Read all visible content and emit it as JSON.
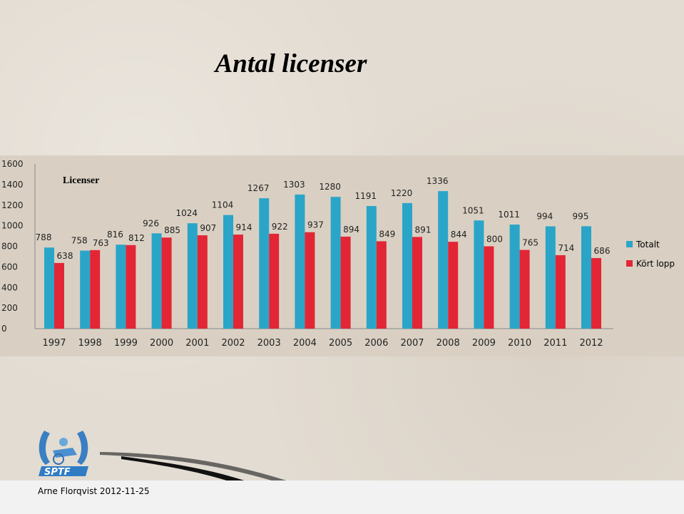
{
  "slide": {
    "title": "Antal licenser",
    "footer": "Arne Florqvist 2012-11-25",
    "logo_text": "SPTF"
  },
  "colors": {
    "series_totalt": "#2aa5c8",
    "series_kort_lopp": "#e32636",
    "chart_background": "#d9d0c3",
    "page_background": "#e3dcd2"
  },
  "chart_data": {
    "type": "bar",
    "title": "Licenser",
    "xlabel": "",
    "ylabel": "",
    "ylim": [
      0,
      1600
    ],
    "yticks": [
      0,
      200,
      400,
      600,
      800,
      1000,
      1200,
      1400,
      1600
    ],
    "grid": false,
    "legend_position": "right",
    "categories": [
      "1997",
      "1998",
      "1999",
      "2000",
      "2001",
      "2002",
      "2003",
      "2004",
      "2005",
      "2006",
      "2007",
      "2008",
      "2009",
      "2010",
      "2011",
      "2012"
    ],
    "series": [
      {
        "name": "Totalt",
        "values": [
          788,
          758,
          816,
          926,
          1024,
          1104,
          1267,
          1303,
          1280,
          1191,
          1220,
          1336,
          1051,
          1011,
          994,
          995
        ]
      },
      {
        "name": "Kört lopp",
        "values": [
          638,
          763,
          812,
          885,
          907,
          914,
          922,
          937,
          894,
          849,
          891,
          844,
          800,
          765,
          714,
          686
        ]
      }
    ]
  }
}
